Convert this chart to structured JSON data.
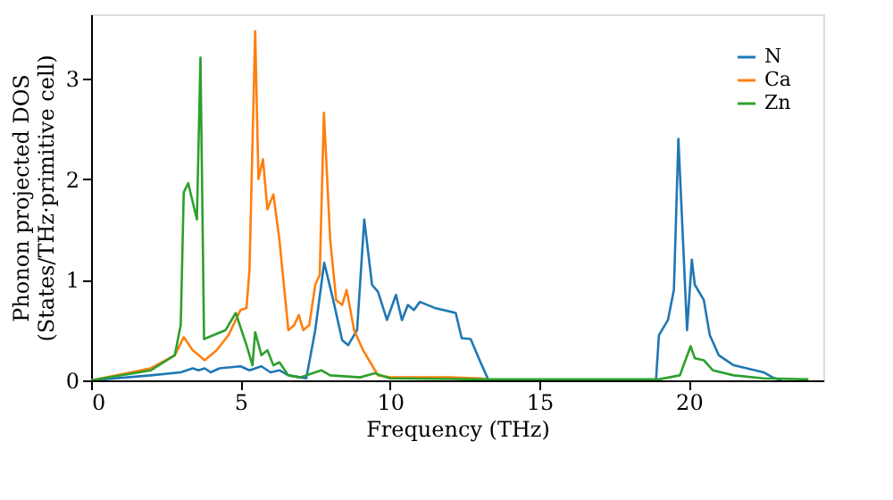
{
  "chart_data": {
    "type": "line",
    "xlabel": "Frequency (THz)",
    "ylabel": "Phonon projected DOS\n(States/THz·primitive cell)",
    "xlim": [
      0,
      24.5
    ],
    "ylim": [
      0,
      3.64
    ],
    "xticks": [
      0,
      5,
      10,
      15,
      20
    ],
    "yticks": [
      0,
      1,
      2,
      3
    ],
    "grid": false,
    "legend": "top right",
    "series": [
      {
        "name": "N",
        "color": "#1f77b4",
        "x": [
          0,
          2,
          3,
          3.4,
          3.6,
          3.8,
          4,
          4.3,
          5,
          5.3,
          5.7,
          6,
          6.3,
          6.6,
          7,
          7.2,
          7.5,
          7.8,
          8.1,
          8.4,
          8.6,
          8.9,
          9.14,
          9.4,
          9.6,
          9.9,
          10.2,
          10.4,
          10.6,
          10.8,
          11,
          11.5,
          12.2,
          12.4,
          12.7,
          13,
          13.3,
          18.9,
          19.0,
          19.3,
          19.5,
          19.65,
          19.94,
          20.1,
          20.2,
          20.5,
          20.7,
          21,
          21.5,
          22.5,
          22.8,
          23.1
        ],
        "values": [
          0,
          0.05,
          0.08,
          0.12,
          0.1,
          0.12,
          0.08,
          0.12,
          0.14,
          0.1,
          0.14,
          0.08,
          0.1,
          0.05,
          0.03,
          0.02,
          0.5,
          1.17,
          0.8,
          0.4,
          0.35,
          0.5,
          1.6,
          0.95,
          0.88,
          0.6,
          0.85,
          0.6,
          0.75,
          0.7,
          0.78,
          0.72,
          0.67,
          0.42,
          0.41,
          0.2,
          0,
          0,
          0.45,
          0.6,
          0.9,
          2.4,
          0.5,
          1.2,
          0.95,
          0.8,
          0.45,
          0.25,
          0.15,
          0.08,
          0.03,
          0
        ]
      },
      {
        "name": "Ca",
        "color": "#ff7f0e",
        "x": [
          0,
          2,
          2.8,
          3.1,
          3.4,
          3.6,
          3.8,
          4.2,
          4.6,
          5.0,
          5.2,
          5.3,
          5.49,
          5.6,
          5.75,
          5.9,
          6.1,
          6.3,
          6.6,
          6.8,
          6.95,
          7.1,
          7.3,
          7.5,
          7.65,
          7.79,
          8.0,
          8.2,
          8.4,
          8.55,
          8.8,
          9.1,
          9.3,
          9.6,
          10,
          12,
          13,
          13.5
        ],
        "values": [
          0,
          0.12,
          0.25,
          0.43,
          0.3,
          0.25,
          0.2,
          0.3,
          0.45,
          0.7,
          0.72,
          1.1,
          3.47,
          2.0,
          2.2,
          1.7,
          1.85,
          1.4,
          0.5,
          0.55,
          0.65,
          0.5,
          0.55,
          0.95,
          1.05,
          2.66,
          1.4,
          0.8,
          0.75,
          0.9,
          0.5,
          0.3,
          0.2,
          0.05,
          0.03,
          0.03,
          0.02,
          0
        ]
      },
      {
        "name": "Zn",
        "color": "#2ca02c",
        "x": [
          0,
          2,
          2.8,
          3.0,
          3.1,
          3.25,
          3.54,
          3.66,
          3.78,
          4.1,
          4.5,
          4.84,
          5.2,
          5.4,
          5.49,
          5.7,
          5.9,
          6.1,
          6.3,
          6.6,
          7,
          7.5,
          7.7,
          8,
          9,
          9.5,
          10,
          13,
          19,
          19.7,
          20.06,
          20.2,
          20.5,
          20.8,
          21.5,
          22.5,
          24
        ],
        "values": [
          0,
          0.1,
          0.25,
          0.55,
          1.87,
          1.96,
          1.6,
          3.21,
          0.41,
          0.45,
          0.5,
          0.67,
          0.35,
          0.15,
          0.48,
          0.25,
          0.3,
          0.15,
          0.18,
          0.05,
          0.03,
          0.08,
          0.1,
          0.05,
          0.03,
          0.07,
          0.02,
          0.01,
          0.01,
          0.05,
          0.34,
          0.22,
          0.2,
          0.1,
          0.05,
          0.02,
          0.01
        ]
      }
    ]
  }
}
